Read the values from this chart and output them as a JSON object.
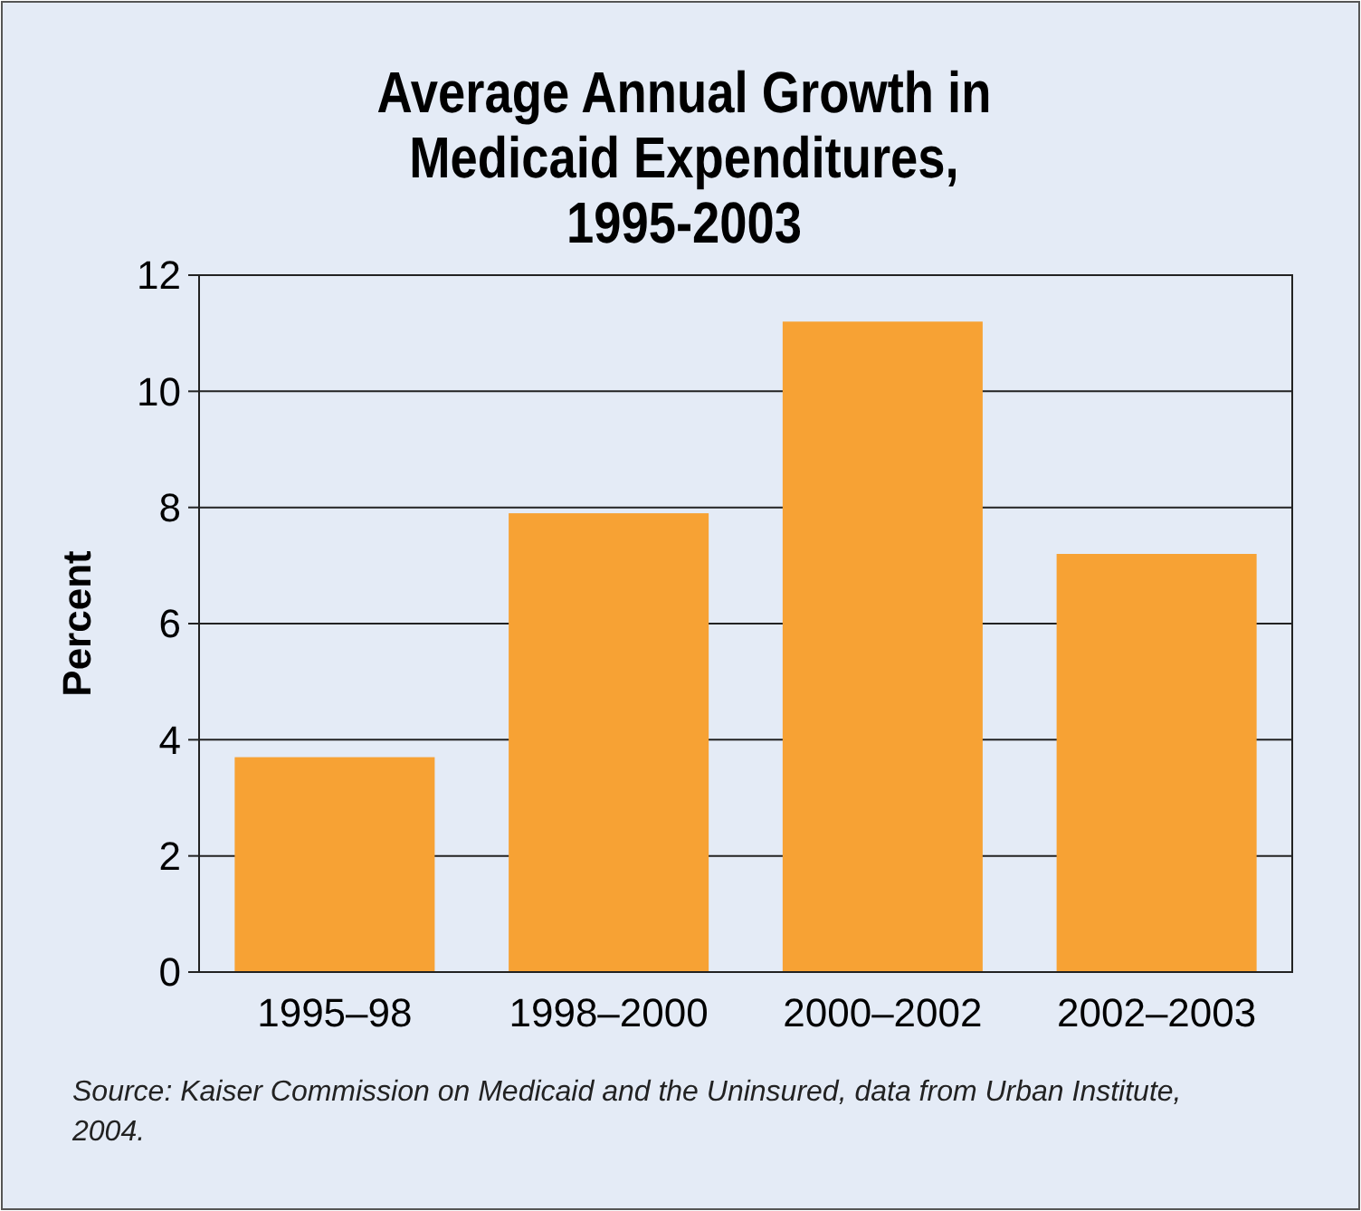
{
  "chart_data": {
    "type": "bar",
    "title": "Average Annual Growth in Medicaid Expenditures, 1995-2003",
    "ylabel": "Percent",
    "categories": [
      "1995–98",
      "1998–2000",
      "2000–2002",
      "2002–2003"
    ],
    "values": [
      3.7,
      7.9,
      11.2,
      7.2
    ],
    "color": "#f7a234",
    "ylim": [
      0,
      12
    ],
    "yticks": [
      0,
      2,
      4,
      6,
      8,
      10,
      12
    ],
    "grid": "y",
    "annotations": [
      "Source: Kaiser Commission on Medicaid and the Uninsured, data from Urban Institute, 2004."
    ]
  }
}
